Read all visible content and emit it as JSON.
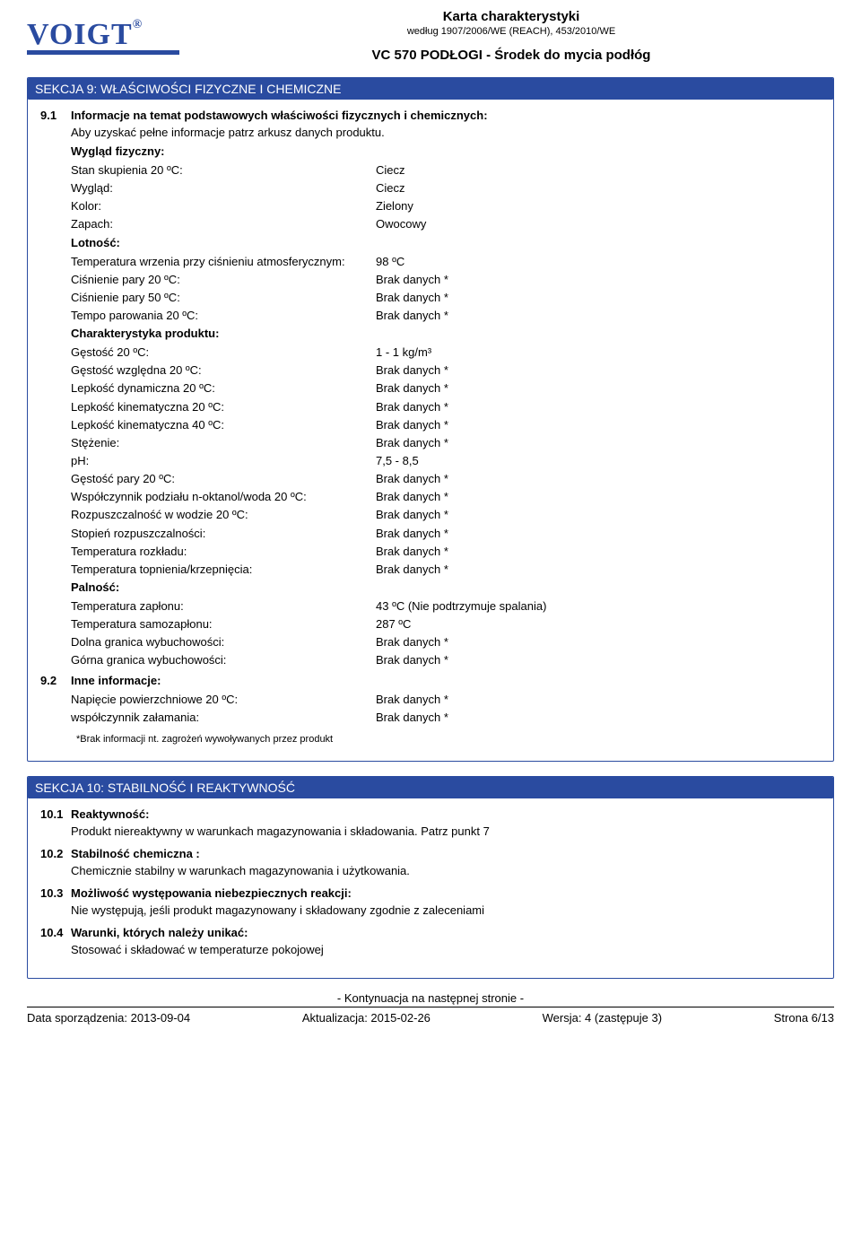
{
  "header": {
    "logo_text": "VOIGT",
    "logo_reg": "®",
    "doc_title": "Karta charakterystyki",
    "doc_subtitle": "według 1907/2006/WE (REACH), 453/2010/WE",
    "product": "VC 570 PODŁOGI - Środek do mycia podłóg"
  },
  "section9": {
    "title": "SEKCJA 9: WŁAŚCIWOŚCI FIZYCZNE I CHEMICZNE",
    "s91_num": "9.1",
    "s91_heading": "Informacje na temat podstawowych właściwości fizycznych i chemicznych:",
    "s91_text": "Aby uzyskać pełne informacje patrz arkusz danych produktu.",
    "group_appearance": "Wygląd fizyczny:",
    "group_volatility": "Lotność:",
    "group_product": "Charakterystyka produktu:",
    "group_flammability": "Palność:",
    "s92_num": "9.2",
    "s92_heading": "Inne informacje:",
    "rows": {
      "r1": {
        "label": "Stan skupienia 20 ºC:",
        "value": "Ciecz"
      },
      "r2": {
        "label": "Wygląd:",
        "value": "Ciecz"
      },
      "r3": {
        "label": "Kolor:",
        "value": "Zielony"
      },
      "r4": {
        "label": "Zapach:",
        "value": "Owocowy"
      },
      "r5": {
        "label": "Temperatura wrzenia przy ciśnieniu atmosferycznym:",
        "value": "98 ºC"
      },
      "r6": {
        "label": "Ciśnienie pary 20 ºC:",
        "value": "Brak danych *"
      },
      "r7": {
        "label": "Ciśnienie pary 50 ºC:",
        "value": "Brak danych *"
      },
      "r8": {
        "label": "Tempo parowania 20 ºC:",
        "value": "Brak danych *"
      },
      "r9": {
        "label": "Gęstość 20 ºC:",
        "value": "1 - 1 kg/m³"
      },
      "r10": {
        "label": "Gęstość względna 20 ºC:",
        "value": "Brak danych *"
      },
      "r11": {
        "label": "Lepkość dynamiczna 20 ºC:",
        "value": "Brak danych *"
      },
      "r12": {
        "label": "Lepkość kinematyczna 20 ºC:",
        "value": "Brak danych *"
      },
      "r13": {
        "label": "Lepkość kinematyczna 40 ºC:",
        "value": "Brak danych *"
      },
      "r14": {
        "label": "Stężenie:",
        "value": "Brak danych *"
      },
      "r15": {
        "label": "pH:",
        "value": "7,5 - 8,5"
      },
      "r16": {
        "label": "Gęstość pary  20 ºC:",
        "value": "Brak danych *"
      },
      "r17": {
        "label": "Współczynnik podziału n-oktanol/woda 20 ºC:",
        "value": "Brak danych *"
      },
      "r18": {
        "label": "Rozpuszczalność w wodzie 20 ºC:",
        "value": "Brak danych *"
      },
      "r19": {
        "label": "Stopień rozpuszczalności:",
        "value": "Brak danych *"
      },
      "r20": {
        "label": "Temperatura rozkładu:",
        "value": "Brak danych *"
      },
      "r21": {
        "label": "Temperatura topnienia/krzepnięcia:",
        "value": "Brak danych *"
      },
      "r22": {
        "label": "Temperatura zapłonu:",
        "value": "43 ºC (Nie podtrzymuje spalania)"
      },
      "r23": {
        "label": "Temperatura samozapłonu:",
        "value": "287 ºC"
      },
      "r24": {
        "label": "Dolna granica wybuchowości:",
        "value": "Brak danych *"
      },
      "r25": {
        "label": "Górna granica wybuchowości:",
        "value": "Brak danych *"
      },
      "r26": {
        "label": "Napięcie powierzchniowe 20 ºC:",
        "value": "Brak danych *"
      },
      "r27": {
        "label": "współczynnik załamania:",
        "value": "Brak danych *"
      }
    },
    "footnote": "*Brak informacji nt. zagrożeń wywoływanych przez produkt"
  },
  "section10": {
    "title": "SEKCJA 10: STABILNOŚĆ I REAKTYWNOŚĆ",
    "items": {
      "i1": {
        "num": "10.1",
        "heading": "Reaktywność:",
        "text": "Produkt niereaktywny w warunkach magazynowania i składowania. Patrz punkt 7"
      },
      "i2": {
        "num": "10.2",
        "heading": "Stabilność chemiczna :",
        "text": "Chemicznie stabilny w warunkach magazynowania i użytkowania."
      },
      "i3": {
        "num": "10.3",
        "heading": "Możliwość występowania niebezpiecznych reakcji:",
        "text": "Nie występują, jeśli produkt magazynowany i składowany zgodnie z zaleceniami"
      },
      "i4": {
        "num": "10.4",
        "heading": "Warunki, których należy unikać:",
        "text": "Stosować i składować w temperaturze pokojowej"
      }
    }
  },
  "footer": {
    "cont": "- Kontynuacja na następnej stronie -",
    "left": "Data sporządzenia: 2013-09-04",
    "mid1": "Aktualizacja: 2015-02-26",
    "mid2": "Wersja: 4 (zastępuje 3)",
    "right": "Strona 6/13"
  }
}
